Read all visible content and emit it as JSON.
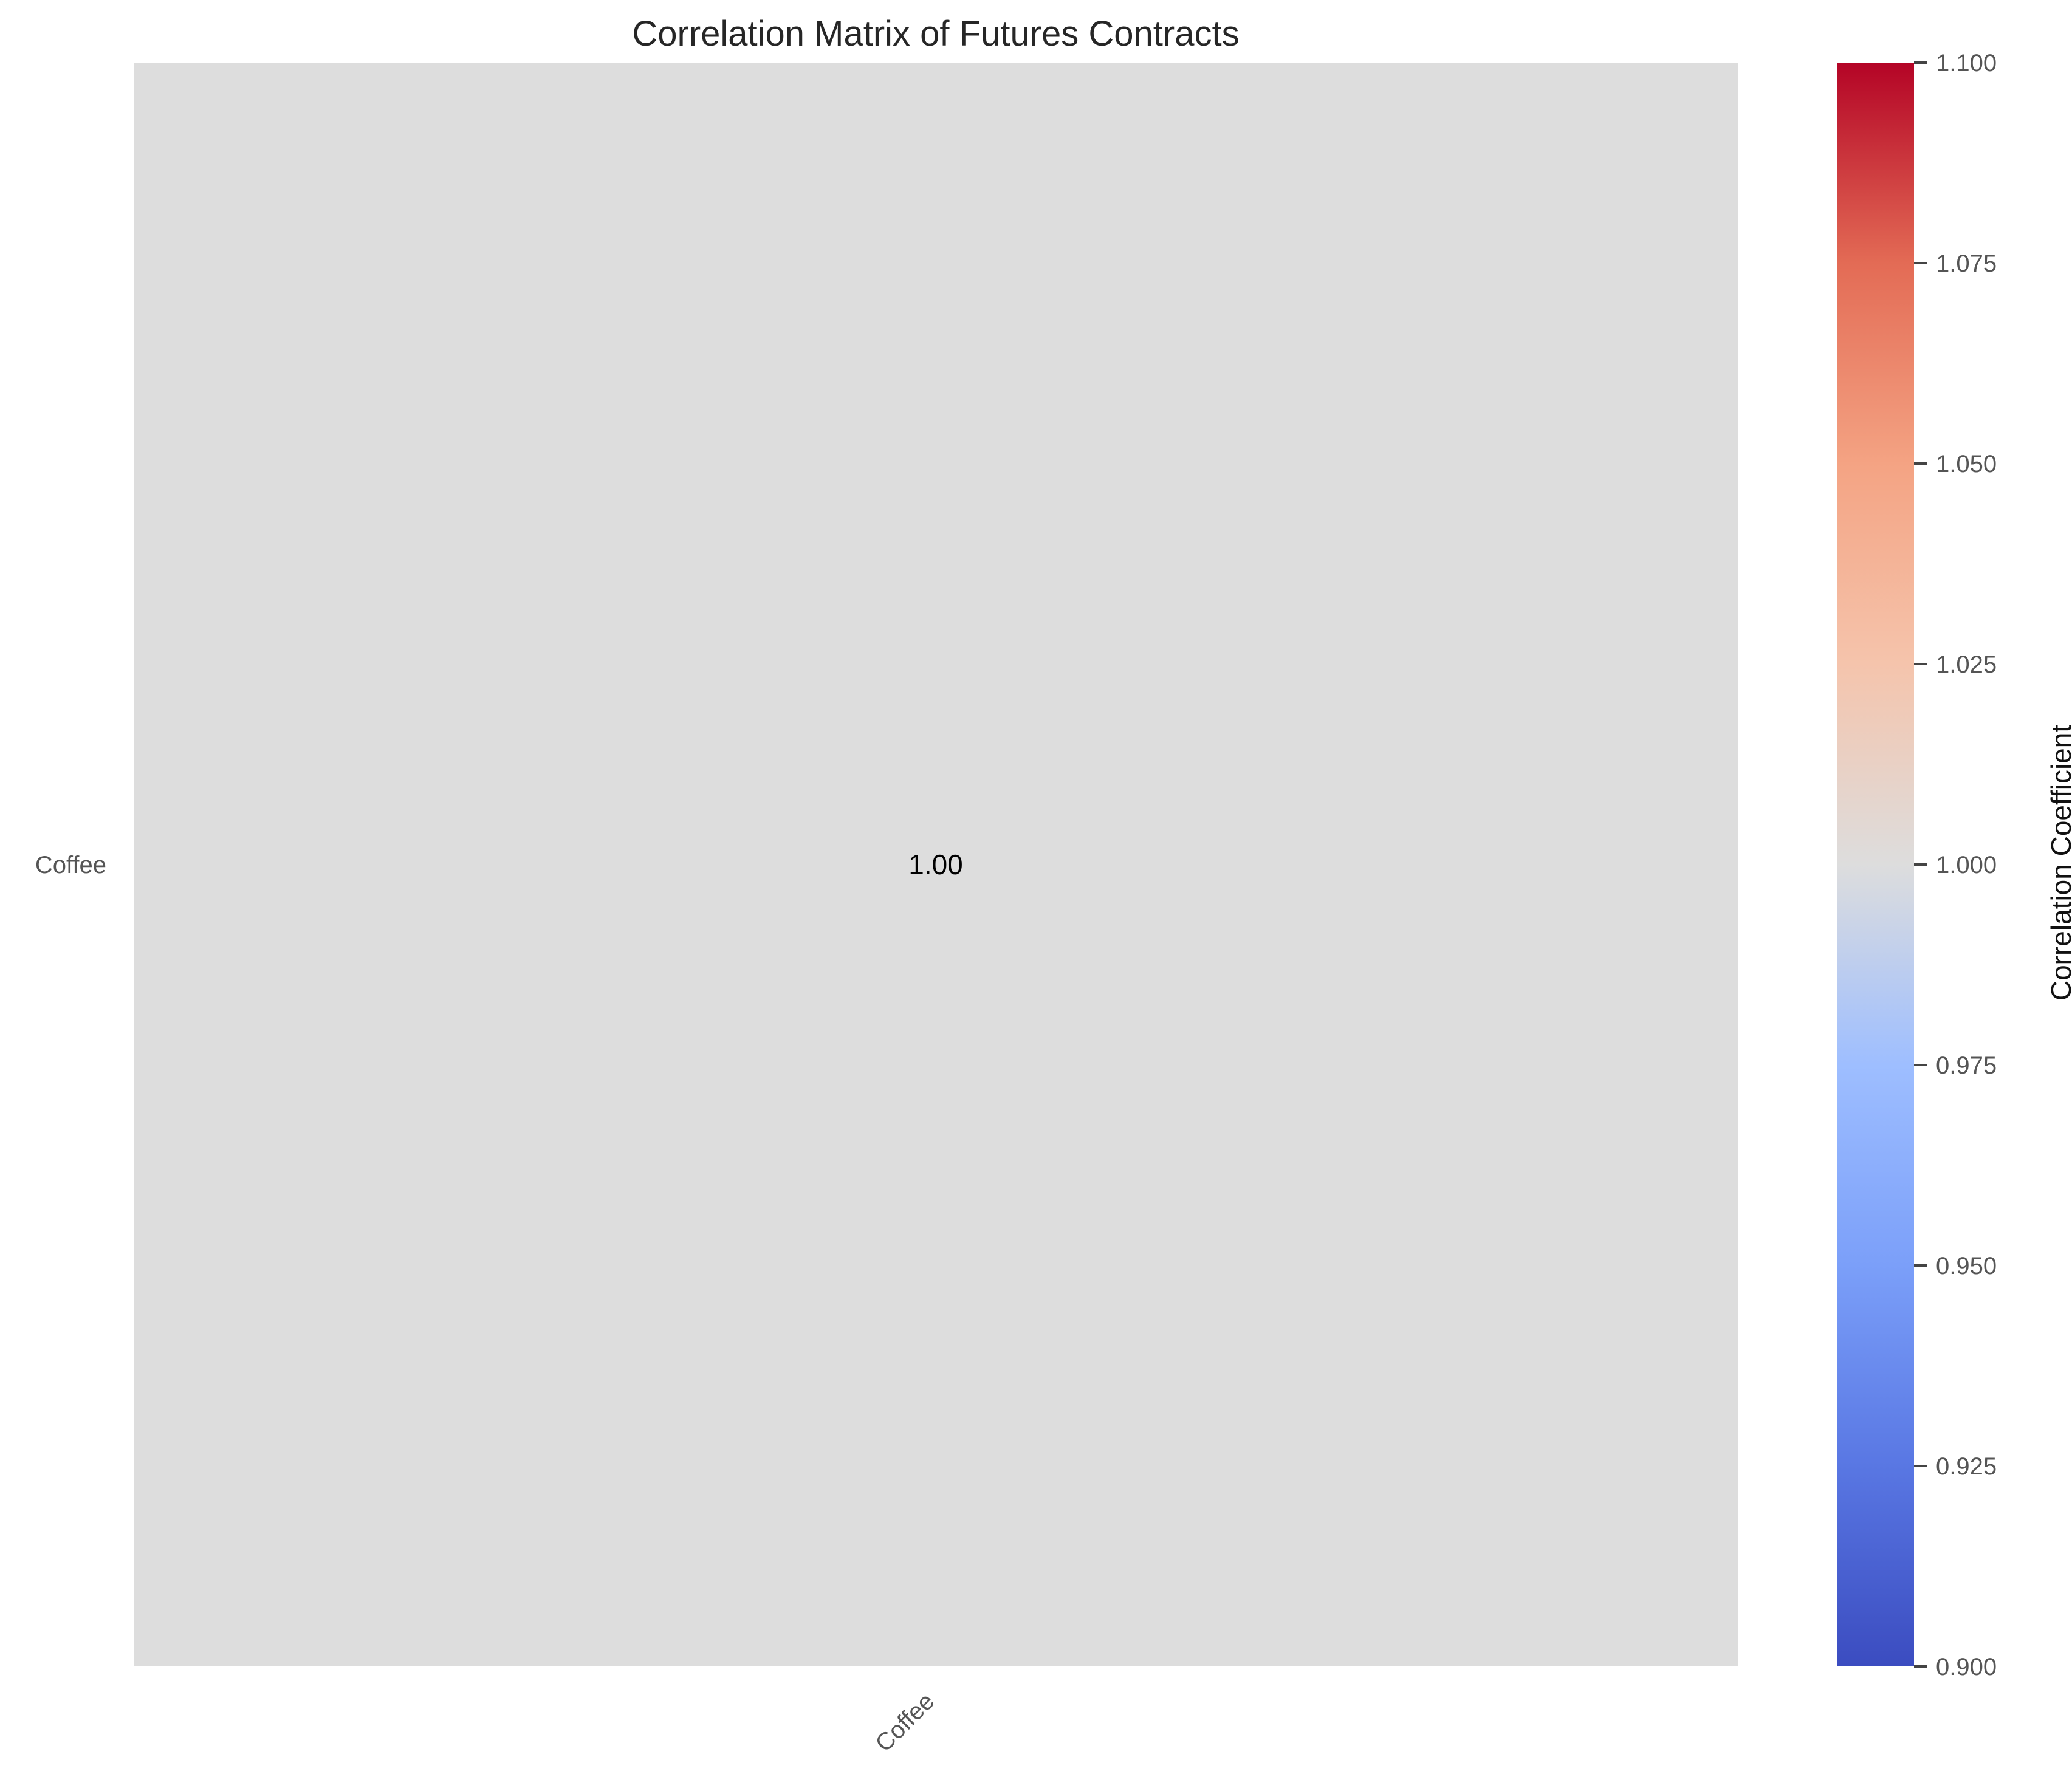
{
  "chart_data": {
    "type": "heatmap",
    "title": "Correlation Matrix of Futures Contracts",
    "row_labels": [
      "Coffee"
    ],
    "col_labels": [
      "Coffee"
    ],
    "values": [
      [
        1.0
      ]
    ],
    "annotation_format": "2 decimals",
    "colormap": "coolwarm",
    "colors": {
      "cell": "#dddddd",
      "cbar_low": "#3b4cc0",
      "cbar_mid": "#dddddd",
      "cbar_high": "#b40426"
    },
    "colorbar": {
      "label": "Correlation Coefficient",
      "range": [
        0.9,
        1.1
      ],
      "ticks": [
        "0.900",
        "0.925",
        "0.950",
        "0.975",
        "1.000",
        "1.025",
        "1.050",
        "1.075",
        "1.100"
      ]
    },
    "x_tick_rotation": "45 degrees",
    "grid": false,
    "legend": "none"
  }
}
